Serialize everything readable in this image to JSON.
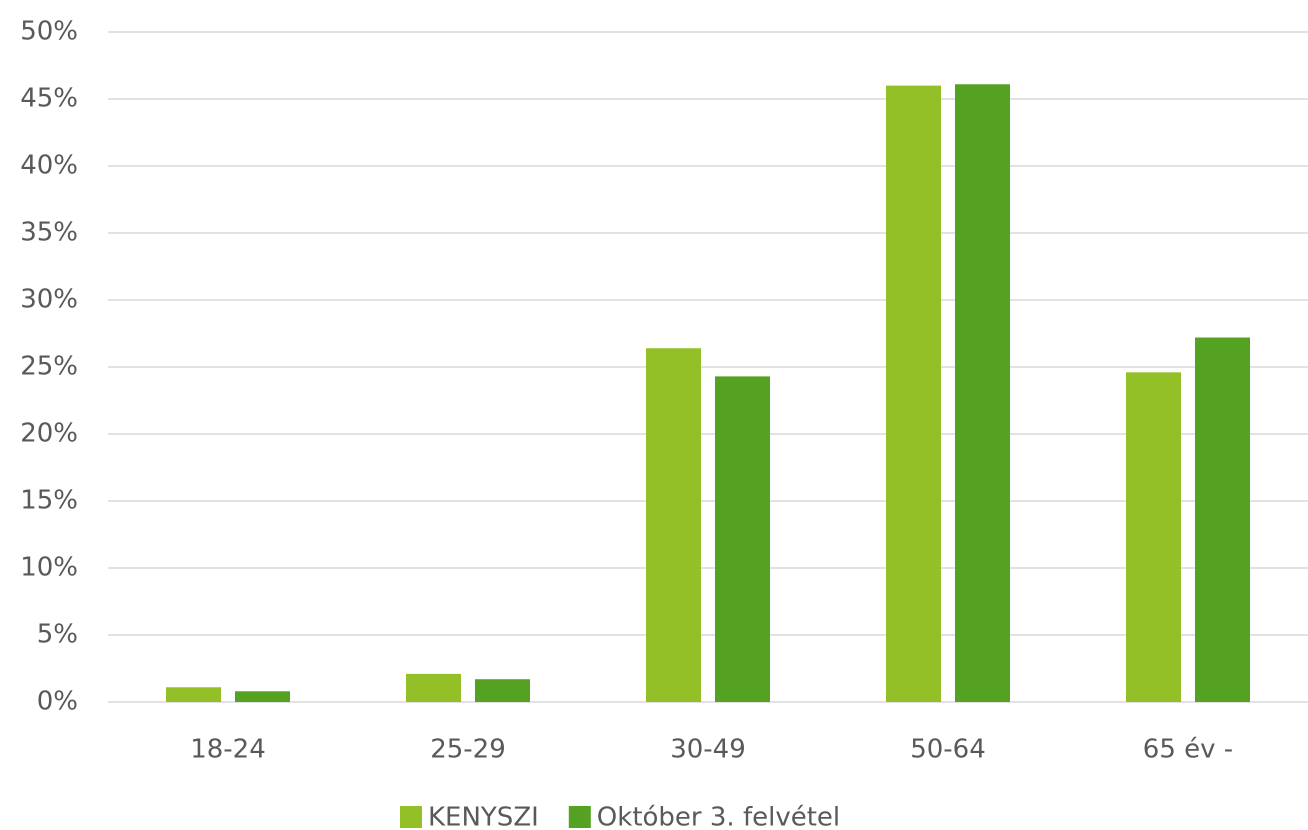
{
  "chart_data": {
    "type": "bar",
    "categories": [
      "18-24",
      "25-29",
      "30-49",
      "50-64",
      "65 év -"
    ],
    "series": [
      {
        "name": "KENYSZI",
        "color": "#92c026",
        "values": [
          1.1,
          2.1,
          26.4,
          46.0,
          24.6
        ]
      },
      {
        "name": "Október 3. felvétel",
        "color": "#55a222",
        "values": [
          0.8,
          1.7,
          24.3,
          46.1,
          27.2
        ]
      }
    ],
    "ylim": [
      0,
      50
    ],
    "yticks": [
      {
        "value": 0,
        "label": "0%"
      },
      {
        "value": 5,
        "label": "5%"
      },
      {
        "value": 10,
        "label": "10%"
      },
      {
        "value": 15,
        "label": "15%"
      },
      {
        "value": 20,
        "label": "20%"
      },
      {
        "value": 25,
        "label": "25%"
      },
      {
        "value": 30,
        "label": "30%"
      },
      {
        "value": 35,
        "label": "35%"
      },
      {
        "value": 40,
        "label": "40%"
      },
      {
        "value": 45,
        "label": "45%"
      },
      {
        "value": 50,
        "label": "50%"
      }
    ],
    "grid": true,
    "legend": "bottom"
  }
}
